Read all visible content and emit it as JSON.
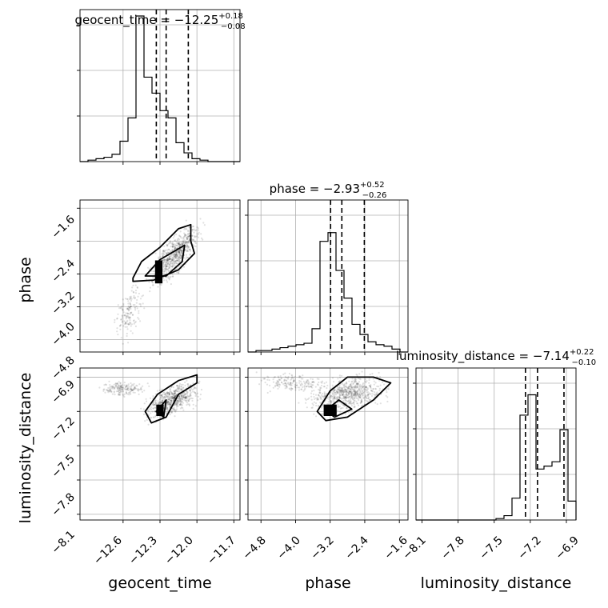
{
  "chart_data": {
    "type": "corner",
    "parameters": [
      "geocent_time",
      "phase",
      "luminosity_distance"
    ],
    "titles": [
      {
        "param": "geocent_time",
        "median": "−12.25",
        "plus": "+0.18",
        "minus": "−0.08"
      },
      {
        "param": "phase",
        "median": "−2.93",
        "plus": "+0.52",
        "minus": "−0.26"
      },
      {
        "param": "luminosity_distance",
        "median": "−7.14",
        "plus": "+0.22",
        "minus": "−0.10"
      }
    ],
    "ranges": {
      "geocent_time": [
        -12.95,
        -11.65
      ],
      "phase": [
        -5.1,
        -1.4
      ],
      "luminosity_distance": [
        -8.15,
        -6.82
      ]
    },
    "ticks": {
      "geocent_time": [
        "−12.6",
        "−12.3",
        "−12.0",
        "−11.7"
      ],
      "phase": [
        "−4.8",
        "−4.0",
        "−3.2",
        "−2.4",
        "−1.6"
      ],
      "luminosity_distance": [
        "−8.1",
        "−7.8",
        "−7.5",
        "−7.2",
        "−6.9"
      ]
    },
    "tick_values": {
      "geocent_time": [
        -12.6,
        -12.3,
        -12.0,
        -11.7
      ],
      "phase": [
        -4.8,
        -4.0,
        -3.2,
        -2.4,
        -1.6
      ],
      "luminosity_distance": [
        -8.1,
        -7.8,
        -7.5,
        -7.2,
        -6.9
      ]
    },
    "quantiles": {
      "geocent_time": [
        -12.33,
        -12.25,
        -12.07
      ],
      "phase": [
        -3.19,
        -2.93,
        -2.41
      ],
      "luminosity_distance": [
        -7.24,
        -7.14,
        -6.92
      ]
    },
    "histograms": {
      "geocent_time": [
        0.0,
        0.01,
        0.02,
        0.03,
        0.05,
        0.14,
        0.3,
        1.0,
        0.58,
        0.47,
        0.35,
        0.3,
        0.13,
        0.06,
        0.02,
        0.01,
        0.0,
        0.0,
        0.0,
        0.0
      ],
      "phase": [
        0.0,
        0.01,
        0.01,
        0.02,
        0.03,
        0.04,
        0.05,
        0.06,
        0.16,
        0.76,
        0.82,
        0.56,
        0.37,
        0.19,
        0.12,
        0.07,
        0.05,
        0.04,
        0.02,
        0.0
      ],
      "luminosity_distance": [
        0.0,
        0.0,
        0.0,
        0.0,
        0.0,
        0.0,
        0.0,
        0.0,
        0.0,
        0.0,
        0.01,
        0.03,
        0.15,
        0.72,
        0.86,
        0.35,
        0.37,
        0.4,
        0.62,
        0.13
      ]
    },
    "grid": true
  }
}
